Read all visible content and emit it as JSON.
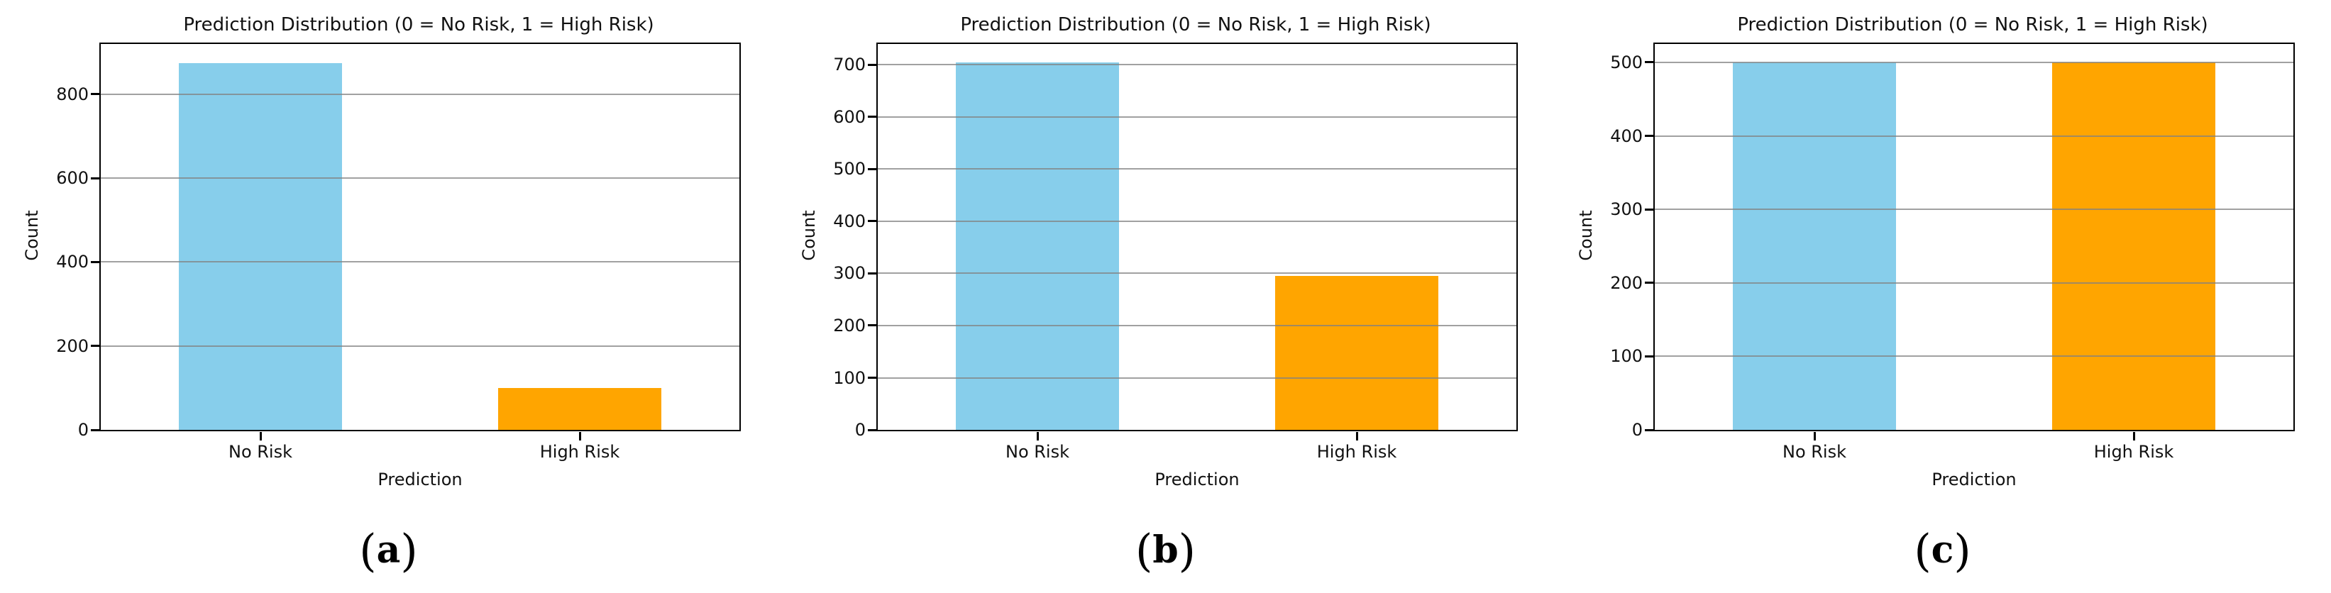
{
  "figure": {
    "background": "#ffffff",
    "accent_colors": {
      "no_risk": "#87CEEB",
      "high_risk": "#FFA500"
    },
    "grid_color": "#828282",
    "spine_color": "#000000"
  },
  "chart_data": [
    {
      "type": "bar",
      "title": "Prediction Distribution (0 = No Risk, 1 = High Risk)",
      "caption": "(a)",
      "caption_letter": "a",
      "categories": [
        "No Risk",
        "High Risk"
      ],
      "values": [
        875,
        100
      ],
      "bar_colors": [
        "#87CEEB",
        "#FFA500"
      ],
      "xlabel": "Prediction",
      "ylabel": "Count",
      "ylim": [
        0,
        920
      ],
      "yticks": [
        0,
        200,
        400,
        600,
        800
      ],
      "grid": "y",
      "legend": "none"
    },
    {
      "type": "bar",
      "title": "Prediction Distribution (0 = No Risk, 1 = High Risk)",
      "caption": "(b)",
      "caption_letter": "b",
      "categories": [
        "No Risk",
        "High Risk"
      ],
      "values": [
        705,
        295
      ],
      "bar_colors": [
        "#87CEEB",
        "#FFA500"
      ],
      "xlabel": "Prediction",
      "ylabel": "Count",
      "ylim": [
        0,
        740
      ],
      "yticks": [
        0,
        100,
        200,
        300,
        400,
        500,
        600,
        700
      ],
      "grid": "y",
      "legend": "none"
    },
    {
      "type": "bar",
      "title": "Prediction Distribution (0 = No Risk, 1 = High Risk)",
      "caption": "(c)",
      "caption_letter": "c",
      "categories": [
        "No Risk",
        "High Risk"
      ],
      "values": [
        500,
        500
      ],
      "bar_colors": [
        "#87CEEB",
        "#FFA500"
      ],
      "xlabel": "Prediction",
      "ylabel": "Count",
      "ylim": [
        0,
        525
      ],
      "yticks": [
        0,
        100,
        200,
        300,
        400,
        500
      ],
      "grid": "y",
      "legend": "none"
    }
  ]
}
